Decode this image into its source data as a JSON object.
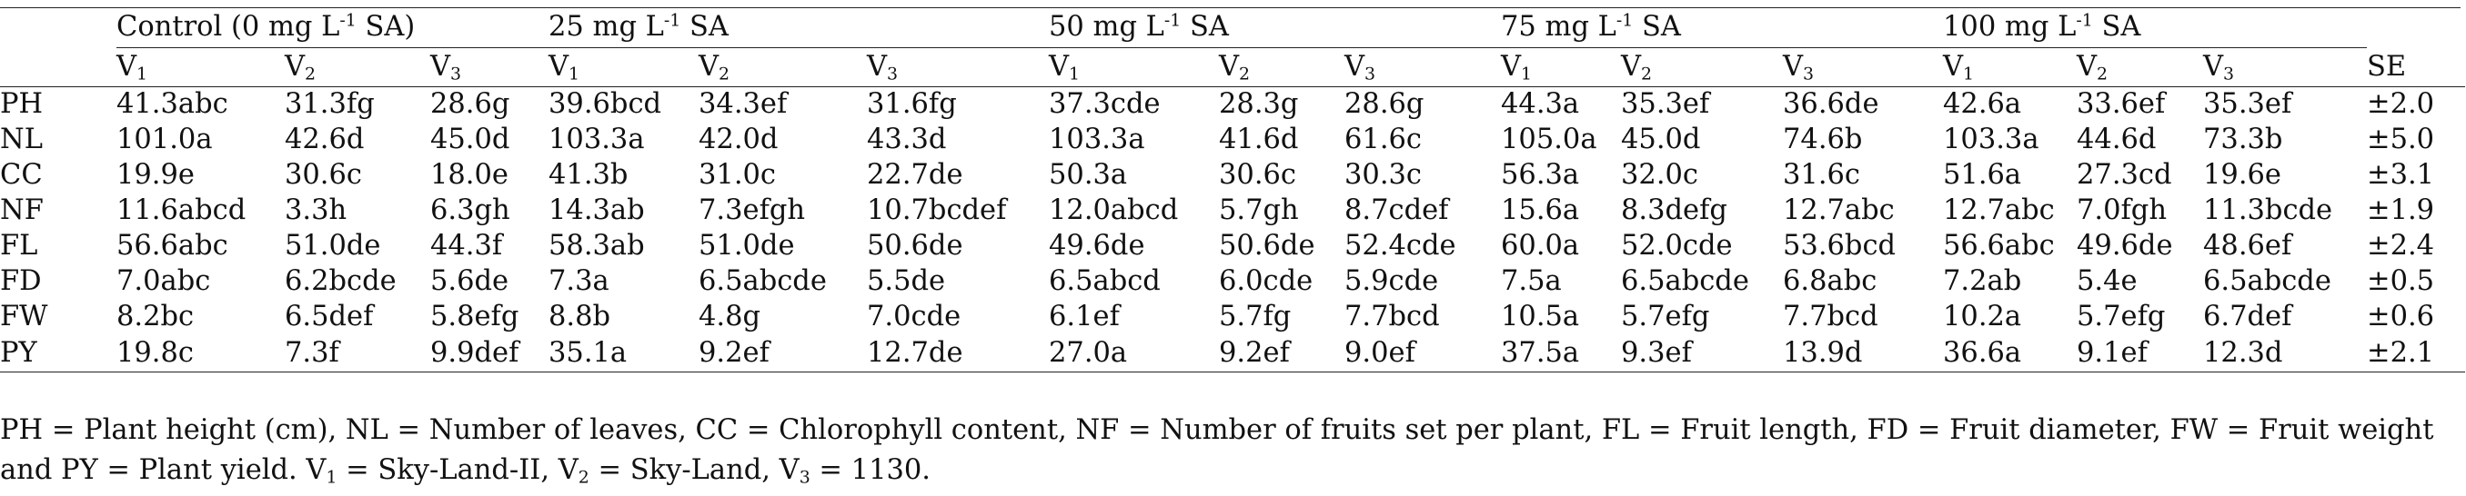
{
  "groups": [
    {
      "pre": "Control (0 mg L",
      "sup": "-1",
      "post": " SA)"
    },
    {
      "pre": "25 mg L",
      "sup": "-1",
      "post": " SA"
    },
    {
      "pre": "50 mg L",
      "sup": "-1",
      "post": " SA"
    },
    {
      "pre": "75 mg L",
      "sup": "-1",
      "post": " SA"
    },
    {
      "pre": "100 mg L",
      "sup": "-1",
      "post": " SA"
    }
  ],
  "varieties": [
    {
      "base": "V",
      "sub": "1"
    },
    {
      "base": "V",
      "sub": "2"
    },
    {
      "base": "V",
      "sub": "3"
    }
  ],
  "se_label": "SE",
  "rows": [
    {
      "label": "PH",
      "cells": [
        "41.3abc",
        "31.3fg",
        "28.6g",
        "39.6bcd",
        "34.3ef",
        "31.6fg",
        "37.3cde",
        "28.3g",
        "28.6g",
        "44.3a",
        "35.3ef",
        "36.6de",
        "42.6a",
        "33.6ef",
        "35.3ef"
      ],
      "se": "±2.0"
    },
    {
      "label": "NL",
      "cells": [
        "101.0a",
        "42.6d",
        "45.0d",
        "103.3a",
        "42.0d",
        "43.3d",
        "103.3a",
        "41.6d",
        "61.6c",
        "105.0a",
        "45.0d",
        "74.6b",
        "103.3a",
        "44.6d",
        "73.3b"
      ],
      "se": "±5.0"
    },
    {
      "label": "CC",
      "cells": [
        "19.9e",
        "30.6c",
        "18.0e",
        "41.3b",
        "31.0c",
        "22.7de",
        "50.3a",
        "30.6c",
        "30.3c",
        "56.3a",
        "32.0c",
        "31.6c",
        "51.6a",
        "27.3cd",
        "19.6e"
      ],
      "se": "±3.1"
    },
    {
      "label": "NF",
      "cells": [
        "11.6abcd",
        "3.3h",
        "6.3gh",
        "14.3ab",
        "7.3efgh",
        "10.7bcdef",
        "12.0abcd",
        "5.7gh",
        "8.7cdef",
        "15.6a",
        "8.3defg",
        "12.7abc",
        "12.7abc",
        "7.0fgh",
        "11.3bcde"
      ],
      "se": "±1.9"
    },
    {
      "label": "FL",
      "cells": [
        "56.6abc",
        "51.0de",
        "44.3f",
        "58.3ab",
        "51.0de",
        "50.6de",
        "49.6de",
        "50.6de",
        "52.4cde",
        "60.0a",
        "52.0cde",
        "53.6bcd",
        "56.6abc",
        "49.6de",
        "48.6ef"
      ],
      "se": "±2.4"
    },
    {
      "label": "FD",
      "cells": [
        "7.0abc",
        "6.2bcde",
        "5.6de",
        "7.3a",
        "6.5abcde",
        "5.5de",
        "6.5abcd",
        "6.0cde",
        "5.9cde",
        "7.5a",
        "6.5abcde",
        "6.8abc",
        "7.2ab",
        "5.4e",
        "6.5abcde"
      ],
      "se": "±0.5"
    },
    {
      "label": "FW",
      "cells": [
        "8.2bc",
        "6.5def",
        "5.8efg",
        "8.8b",
        "4.8g",
        "7.0cde",
        "6.1ef",
        "5.7fg",
        "7.7bcd",
        "10.5a",
        "5.7efg",
        "7.7bcd",
        "10.2a",
        "5.7efg",
        "6.7def"
      ],
      "se": "±0.6"
    },
    {
      "label": "PY",
      "cells": [
        "19.8c",
        "7.3f",
        "9.9def",
        "35.1a",
        "9.2ef",
        "12.7de",
        "27.0a",
        "9.2ef",
        "9.0ef",
        "37.5a",
        "9.3ef",
        "13.9d",
        "36.6a",
        "9.1ef",
        "12.3d"
      ],
      "se": "±2.1"
    }
  ],
  "footnote": {
    "line1": "PH = Plant height (cm), NL = Number of leaves, CC = Chlorophyll content, NF = Number of fruits set per plant, FL = Fruit length, FD = Fruit diameter, FW = Fruit weight",
    "line2_a": "and PY = Plant yield. V",
    "line2_s1": "1",
    "line2_b": " = Sky-Land-II, V",
    "line2_s2": "2",
    "line2_c": " = Sky-Land, V",
    "line2_s3": "3",
    "line2_d": " = 1130."
  }
}
